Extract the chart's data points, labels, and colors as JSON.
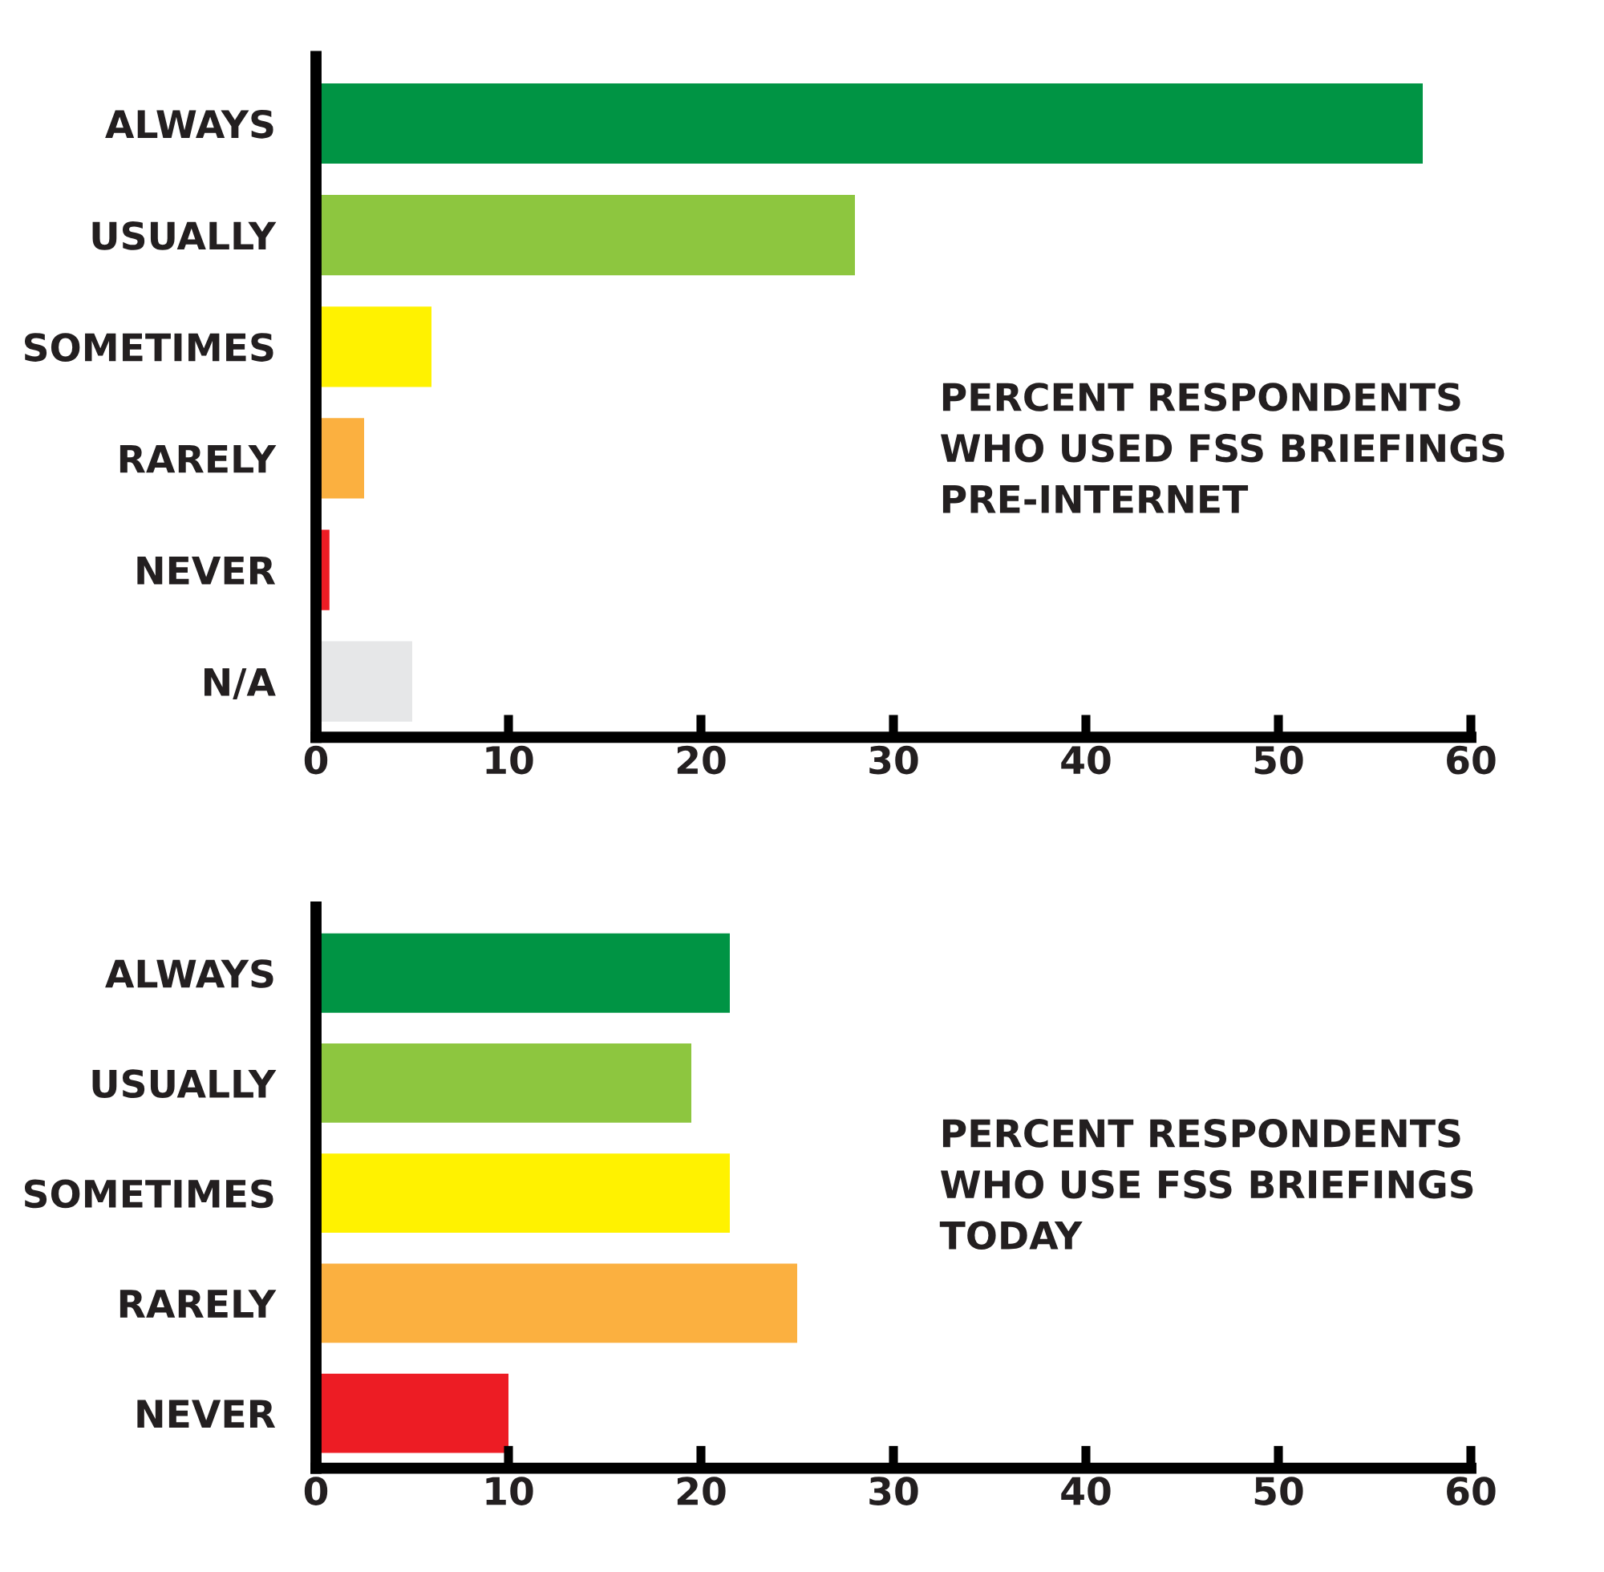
{
  "chart_data": [
    {
      "type": "bar",
      "orientation": "horizontal",
      "title": "PERCENT RESPONDENTS\nWHO USED FSS BRIEFINGS\nPRE-INTERNET",
      "categories": [
        "ALWAYS",
        "USUALLY",
        "SOMETIMES",
        "RARELY",
        "NEVER",
        "N/A"
      ],
      "values": [
        57.5,
        28,
        6,
        2.5,
        0.7,
        5
      ],
      "colors": [
        "#009444",
        "#8dc63f",
        "#fff200",
        "#fbb040",
        "#ed1c24",
        "#e6e7e8"
      ],
      "xlim": [
        0,
        60
      ],
      "xticks": [
        0,
        10,
        20,
        30,
        40,
        50,
        60
      ],
      "grid": false,
      "legend": false
    },
    {
      "type": "bar",
      "orientation": "horizontal",
      "title": "PERCENT RESPONDENTS\nWHO USE FSS BRIEFINGS\nTODAY",
      "categories": [
        "ALWAYS",
        "USUALLY",
        "SOMETIMES",
        "RARELY",
        "NEVER"
      ],
      "values": [
        21.5,
        19.5,
        21.5,
        25,
        10
      ],
      "colors": [
        "#009444",
        "#8dc63f",
        "#fff200",
        "#fbb040",
        "#ed1c24"
      ],
      "xlim": [
        0,
        60
      ],
      "xticks": [
        0,
        10,
        20,
        30,
        40,
        50,
        60
      ],
      "grid": false,
      "legend": false
    }
  ]
}
